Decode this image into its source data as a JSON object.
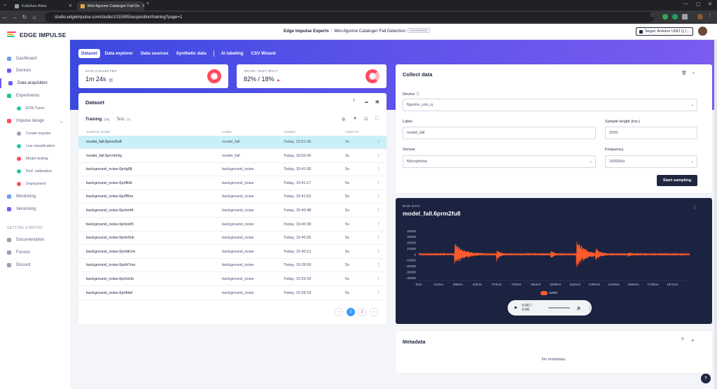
{
  "browser": {
    "tabs": [
      {
        "title": "Kutluhan Aktar",
        "active": false
      },
      {
        "title": "Mini-figurine Cataloger Fall De",
        "active": true
      }
    ],
    "url": "studio.edgeimpulse.com/studio/1015905/acquisition/training?page=1"
  },
  "sidebar": {
    "brand": "EDGE IMPULSE",
    "items": [
      {
        "label": "Dashboard",
        "icon": "dashboard-icon",
        "active": false
      },
      {
        "label": "Devices",
        "icon": "devices-icon",
        "active": false
      },
      {
        "label": "Data acquisition",
        "icon": "data-acquisition-icon",
        "active": true
      },
      {
        "label": "Experiments",
        "icon": "experiments-icon",
        "active": false
      },
      {
        "label": "EON Tuner",
        "icon": "eon-tuner-icon",
        "active": false,
        "sub": true
      },
      {
        "label": "Impulse design",
        "icon": "impulse-design-icon",
        "active": false,
        "expandable": true
      },
      {
        "label": "Create impulse",
        "icon": "create-impulse-icon",
        "active": false,
        "sub": true
      },
      {
        "label": "Live classification",
        "icon": "live-classification-icon",
        "active": false,
        "sub": true
      },
      {
        "label": "Model testing",
        "icon": "model-testing-icon",
        "active": false,
        "sub": true
      },
      {
        "label": "Perf. calibration",
        "icon": "perf-calibration-icon",
        "active": false,
        "sub": true
      },
      {
        "label": "Deployment",
        "icon": "deployment-icon",
        "active": false,
        "sub": true
      },
      {
        "label": "Monitoring",
        "icon": "monitoring-icon",
        "active": false
      },
      {
        "label": "Versioning",
        "icon": "versioning-icon",
        "active": false
      }
    ],
    "section_label": "GETTING STARTED",
    "getting_started": [
      {
        "label": "Documentation",
        "icon": "documentation-icon"
      },
      {
        "label": "Forums",
        "icon": "forums-icon"
      },
      {
        "label": "Discord",
        "icon": "discord-icon"
      }
    ]
  },
  "header": {
    "org": "Edge Impulse Experts",
    "separator": "/",
    "project": "Mini-figurine Cataloger Fall Detection",
    "badge": "ENTERPRISE",
    "target": "Target: Arduino UNO Q (..."
  },
  "page_tabs": [
    "Dataset",
    "Data explorer",
    "Data sources",
    "Synthetic data",
    "AI labeling",
    "CSV Wizard"
  ],
  "stats": {
    "collected_label": "DATA COLLECTED",
    "collected_value": "1m 24s",
    "split_label": "TRAIN / TEST SPLIT",
    "split_value": "82% / 18%",
    "train_fraction": 0.82
  },
  "dataset": {
    "title": "Dataset",
    "training_label": "Training",
    "training_count": "(14)",
    "test_label": "Test",
    "test_count": "(3)",
    "columns": [
      "SAMPLE NAME",
      "LABEL",
      "ADDED",
      "LENGTH"
    ],
    "rows": [
      {
        "name": "model_fall.6prm2fu8",
        "label": "model_fall",
        "added": "Today, 15:51:36",
        "length": "2s",
        "selected": true
      },
      {
        "name": "model_fall.6prm0r9g",
        "label": "model_fall",
        "added": "Today, 15:50:42",
        "length": "2s"
      },
      {
        "name": "background_noise.6prlg0fj",
        "label": "background_noise",
        "added": "Today, 15:41:30",
        "length": "5s"
      },
      {
        "name": "background_noise.6prlfk6t",
        "label": "background_noise",
        "added": "Today, 15:41:17",
        "length": "5s"
      },
      {
        "name": "background_noise.6prlf5he",
        "label": "background_noise",
        "added": "Today, 15:41:02",
        "length": "5s"
      },
      {
        "name": "background_noise.6prlenf4",
        "label": "background_noise",
        "added": "Today, 15:40:48",
        "length": "5s"
      },
      {
        "name": "background_noise.6prledr5",
        "label": "background_noise",
        "added": "Today, 15:40:38",
        "length": "5s"
      },
      {
        "name": "background_noise.6prle0nk",
        "label": "background_noise",
        "added": "Today, 15:40:25",
        "length": "5s"
      },
      {
        "name": "background_noise.6prldk1m",
        "label": "background_noise",
        "added": "Today, 15:40:12",
        "length": "5s"
      },
      {
        "name": "background_noise.6prld7ms",
        "label": "background_noise",
        "added": "Today, 15:39:59",
        "length": "5s"
      },
      {
        "name": "background_noise.6prlck3n",
        "label": "background_noise",
        "added": "Today, 15:39:39",
        "length": "5s"
      },
      {
        "name": "background_noise.6prlbtaf",
        "label": "background_noise",
        "added": "Today, 15:39:19",
        "length": "5s"
      }
    ],
    "row_menu": "⋮",
    "pages": [
      "1",
      "2"
    ],
    "current_page": "1",
    "prev": "‹",
    "next": "›"
  },
  "collect": {
    "title": "Collect data",
    "device_label": "Device",
    "device_value": "figurine_uno_q",
    "label_label": "Label",
    "label_value": "model_fall",
    "length_label": "Sample length (ms.)",
    "length_value": "2000",
    "sensor_label": "Sensor",
    "sensor_value": "Microphone",
    "frequency_label": "Frequency",
    "frequency_value": "16000Hz",
    "start_button": "Start sampling"
  },
  "raw": {
    "section_label": "RAW DATA",
    "title": "model_fall.6prm2fu8",
    "menu": "⋮",
    "player_time": "0:00 / 0:00"
  },
  "chart_data": {
    "type": "line",
    "title": "",
    "xlabel": "",
    "ylabel": "",
    "x_ticks": [
      "0ms",
      "144ms",
      "288ms",
      "432ms",
      "576ms",
      "720ms",
      "864ms",
      "1008ms",
      "1152ms",
      "1296ms",
      "1440ms",
      "1584ms",
      "1728ms",
      "1872ms"
    ],
    "y_ticks": [
      "40000",
      "30000",
      "20000",
      "10000",
      "0",
      "-10000",
      "-20000",
      "-30000",
      "-40000"
    ],
    "xlim": [
      0,
      2000
    ],
    "ylim": [
      -40000,
      40000
    ],
    "series": [
      {
        "name": "audio",
        "color": "#ff5a2c",
        "bursts": [
          {
            "t": 265,
            "amp": 22000,
            "dur": 70
          },
          {
            "t": 575,
            "amp": 14000,
            "dur": 20
          },
          {
            "t": 975,
            "amp": 9000,
            "dur": 20
          },
          {
            "t": 1165,
            "amp": 28000,
            "dur": 60
          },
          {
            "t": 1305,
            "amp": 11000,
            "dur": 40
          },
          {
            "t": 1545,
            "amp": 4000,
            "dur": 25
          }
        ],
        "noise_amp": 1200
      }
    ],
    "grid": false,
    "legend": "bottom-center"
  },
  "metadata": {
    "title": "Metadata",
    "empty": "No metadata.",
    "help": "?",
    "add": "+"
  },
  "colors": {
    "accent": "#3b49df",
    "selected_row": "#c8f0f8",
    "waveform": "#ff5a2c",
    "panel_dark": "#1b2341"
  }
}
